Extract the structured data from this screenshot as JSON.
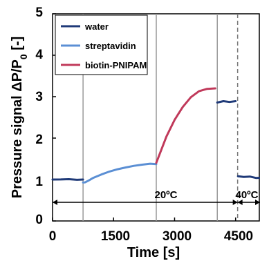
{
  "chart_data": {
    "type": "line",
    "xlabel": "Time [s]",
    "ylabel_parts": [
      "Pressure signal ΔP/P",
      "0",
      " [-]"
    ],
    "xlim": [
      0,
      5100
    ],
    "ylim": [
      0,
      5
    ],
    "x_ticks": [
      "0",
      "1500",
      "3000",
      "4500"
    ],
    "x_tick_values": [
      0,
      1500,
      3000,
      4500
    ],
    "y_ticks": [
      "0",
      "1",
      "2",
      "3",
      "4",
      "5"
    ],
    "y_tick_values": [
      0,
      1,
      2,
      3,
      4,
      5
    ],
    "grid": false,
    "legend_position": "top-left",
    "series": [
      {
        "name": "water",
        "color": "#1f3a78",
        "segments": [
          {
            "x": [
              0,
              200,
              400,
              600,
              750
            ],
            "y": [
              1.0,
              1.01,
              1.02,
              1.0,
              1.0
            ]
          },
          {
            "x": [
              4050,
              4200,
              4350,
              4500
            ],
            "y": [
              2.87,
              2.88,
              2.88,
              2.89
            ]
          },
          {
            "x": [
              4560,
              4700,
              4850,
              5000,
              5100
            ],
            "y": [
              1.08,
              1.07,
              1.06,
              1.05,
              1.05
            ]
          }
        ]
      },
      {
        "name": "streptavidin",
        "color": "#5b8fd4",
        "segments": [
          {
            "x": [
              750,
              800,
              900,
              1000,
              1200,
              1400,
              1600,
              1800,
              2000,
              2200,
              2400,
              2550
            ],
            "y": [
              0.94,
              0.92,
              0.97,
              1.03,
              1.12,
              1.2,
              1.26,
              1.3,
              1.33,
              1.35,
              1.37,
              1.38
            ]
          }
        ]
      },
      {
        "name": "biotin-PNIPAM",
        "color": "#c0395a",
        "segments": [
          {
            "x": [
              2550,
              2650,
              2800,
              3000,
              3200,
              3400,
              3600,
              3800,
              4000
            ],
            "y": [
              1.4,
              1.65,
              2.05,
              2.45,
              2.75,
              2.98,
              3.12,
              3.18,
              3.2
            ]
          }
        ]
      }
    ],
    "vertical_lines": [
      {
        "x": 750,
        "style": "solid"
      },
      {
        "x": 2550,
        "style": "solid"
      },
      {
        "x": 4050,
        "style": "solid"
      },
      {
        "x": 4550,
        "style": "dashed"
      }
    ],
    "annotations": [
      {
        "text": "20ºC",
        "x": 2550,
        "y": 0.9
      },
      {
        "text": "40ºC",
        "x": 4830,
        "y": 0.9
      }
    ],
    "arrows": [
      {
        "x1": 0,
        "x2": 4550,
        "y": 0.45
      },
      {
        "x1": 4550,
        "x2": 5100,
        "y": 0.45
      }
    ]
  }
}
